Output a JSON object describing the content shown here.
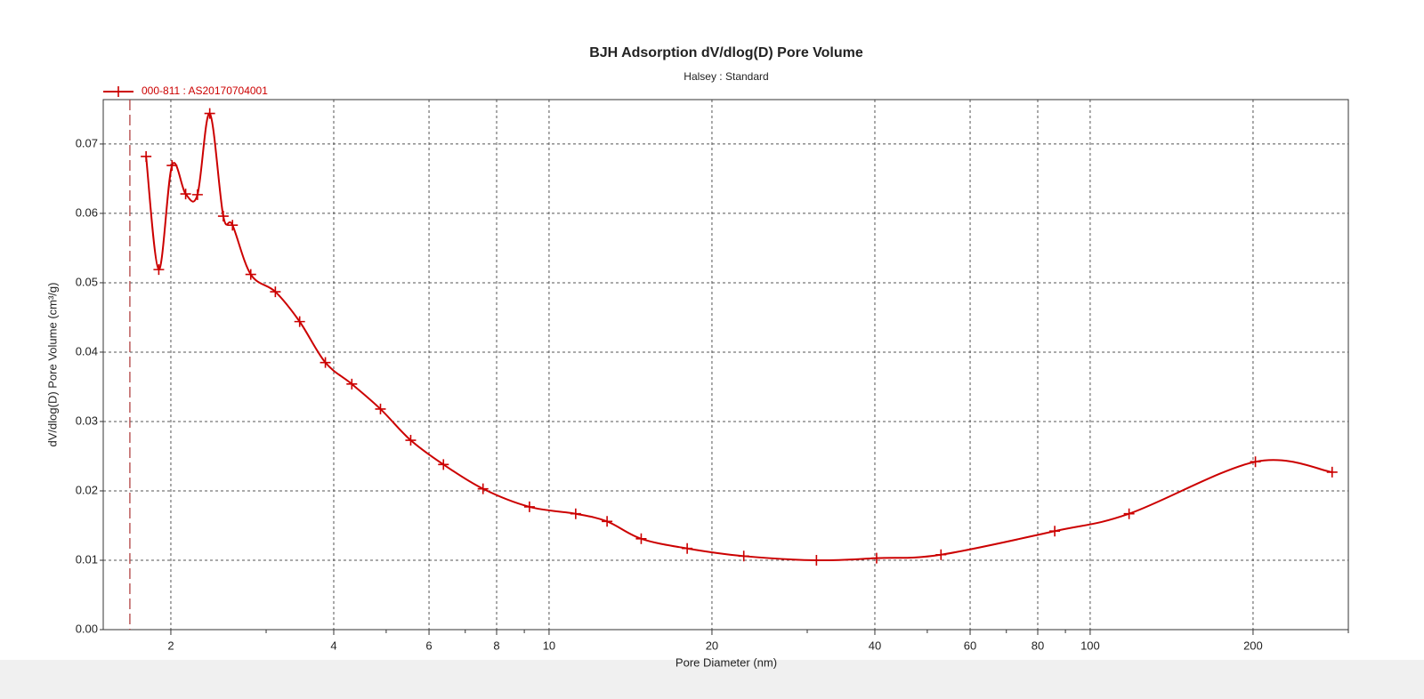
{
  "chart_data": {
    "type": "line",
    "title": "BJH Adsorption dV/dlog(D) Pore Volume",
    "subtitle": "Halsey : Standard",
    "x_label": "Pore Diameter (nm)",
    "y_label": "dV/dlog(D) Pore Volume (cm³/g)",
    "x_scale": "log",
    "xlim": [
      1.5,
      300
    ],
    "xticks": [
      2,
      4,
      6,
      8,
      10,
      20,
      40,
      60,
      80,
      100,
      200
    ],
    "xminorticks": [
      3,
      5,
      7,
      9,
      30,
      50,
      70,
      90,
      300
    ],
    "ylim": [
      0,
      0.0764
    ],
    "yticks": [
      {
        "value": 0,
        "label": "0.00"
      },
      0.01,
      0.02,
      0.03,
      0.04,
      0.05,
      0.06,
      0.07
    ],
    "grid": true,
    "legend": "top-left",
    "vline": 1.68,
    "vline_color": "#b04040",
    "x": [
      1.8,
      1.9,
      2.01,
      2.13,
      2.24,
      2.36,
      2.5,
      2.6,
      2.81,
      3.12,
      3.46,
      3.86,
      4.32,
      4.88,
      5.55,
      6.38,
      7.55,
      9.2,
      11.2,
      12.8,
      14.8,
      18.0,
      22.9,
      31.2,
      40.3,
      53.0,
      86.0,
      118,
      202,
      280
    ],
    "series": [
      {
        "name": "000-811 : AS20170704001",
        "color": "#cc0000",
        "values": [
          0.0682,
          0.0519,
          0.0669,
          0.0628,
          0.0627,
          0.0744,
          0.0596,
          0.0583,
          0.0512,
          0.0487,
          0.0444,
          0.0385,
          0.0354,
          0.0318,
          0.0273,
          0.0238,
          0.0203,
          0.0177,
          0.0167,
          0.0156,
          0.0131,
          0.0117,
          0.0106,
          0.01,
          0.0103,
          0.0108,
          0.0142,
          0.0167,
          0.0242,
          0.0227
        ]
      }
    ]
  }
}
